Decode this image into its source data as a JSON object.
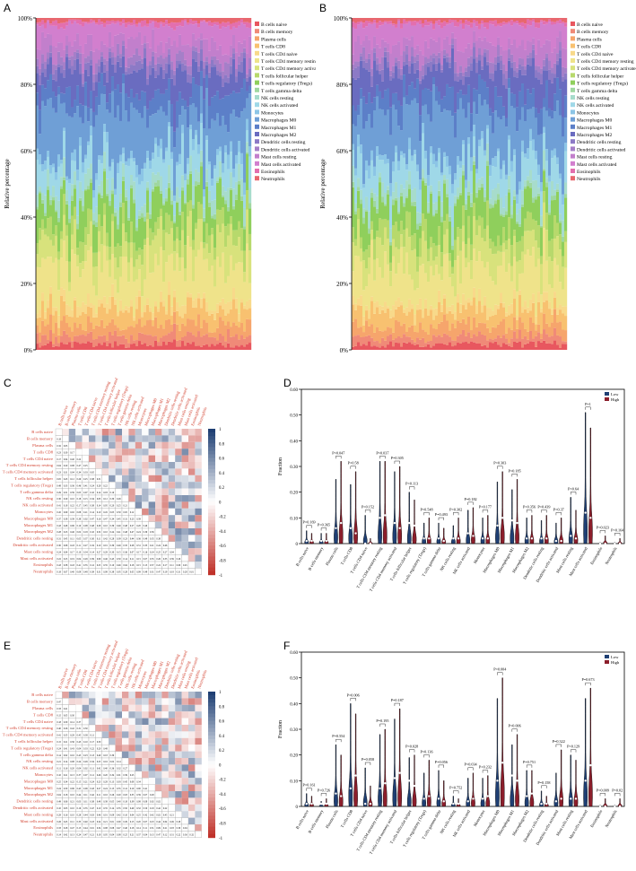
{
  "panel_labels": {
    "a": "A",
    "b": "B",
    "c": "C",
    "d": "D",
    "e": "E",
    "f": "F"
  },
  "cell_types": [
    "B cells naive",
    "B cells memory",
    "Plasma cells",
    "T cells CD8",
    "T cells CD4 naive",
    "T cells CD4 memory resting",
    "T cells CD4 memory activated",
    "T cells follicular helper",
    "T cells regulatory (Tregs)",
    "T cells gamma delta",
    "NK cells resting",
    "NK cells activated",
    "Monocytes",
    "Macrophages M0",
    "Macrophages M1",
    "Macrophages M2",
    "Dendritic cells resting",
    "Dendritic cells activated",
    "Mast cells resting",
    "Mast cells activated",
    "Eosinophils",
    "Neutrophils"
  ],
  "legend_colors": [
    "#e8575f",
    "#f08a78",
    "#f6a56c",
    "#f8c170",
    "#f8d98a",
    "#efe38a",
    "#d8e27c",
    "#b7d96c",
    "#8fcf5c",
    "#9fd7a0",
    "#a7dccc",
    "#9fd8e8",
    "#8cc5e6",
    "#6f9fd6",
    "#5c7fc8",
    "#6a6cc0",
    "#8c7ac6",
    "#a57fc8",
    "#c27fcc",
    "#d27fce",
    "#e36fae",
    "#e8676e"
  ],
  "stacked_panels": [
    {
      "id": "A",
      "ylabel": "Relative percentage",
      "yticks": [
        "0%",
        "20%",
        "40%",
        "60%",
        "80%",
        "100%"
      ],
      "n_samples": 80
    },
    {
      "id": "B",
      "ylabel": "Relative percentage",
      "yticks": [
        "0%",
        "20%",
        "40%",
        "60%",
        "80%",
        "100%"
      ],
      "n_samples": 80
    }
  ],
  "heatmap": {
    "colorbar_ticks": [
      "1",
      "0.8",
      "0.6",
      "0.4",
      "0.2",
      "0",
      "-0.2",
      "-0.4",
      "-0.6",
      "-0.8",
      "-1"
    ],
    "low_color": "#c0322a",
    "mid_color": "#ffffff",
    "high_color": "#1f3f73"
  },
  "chart_data": [
    {
      "type": "violin",
      "panel": "D",
      "ylabel": "Fraction",
      "ylim": [
        0,
        0.6
      ],
      "yticks": [
        "0",
        "0.10",
        "0.20",
        "0.30",
        "0.40",
        "0.50",
        "0.60"
      ],
      "legend": [
        "Low",
        "High"
      ],
      "colors": {
        "low": "#1f3f73",
        "high": "#8b1e2b"
      },
      "categories": [
        "B cells naive",
        "B cells memory",
        "Plasma cells",
        "T cells CD8",
        "T cells CD4 naive",
        "T cells CD4 memory resting",
        "T cells CD4 memory activated",
        "T cells follicular helper",
        "T cells regulatory (Tregs)",
        "T cells gamma delta",
        "NK cells resting",
        "NK cells activated",
        "Monocytes",
        "Macrophages M0",
        "Macrophages M1",
        "Macrophages M2",
        "Dendritic cells resting",
        "Dendritic cells activated",
        "Mast cells resting",
        "Mast cells activated",
        "Eosinophils",
        "Neutrophils"
      ],
      "pvalues": [
        "P=0.169",
        "P=0.365",
        "P=0.047",
        "P=0.58",
        "P=0.152",
        "P=0.037",
        "P=0.305",
        "P=0.113",
        "P=0.548",
        "P=0.493",
        "P=0.302",
        "P=0.182",
        "P=0.177",
        "P=0.303",
        "P=0.185",
        "P=0.356",
        "P=0.439",
        "P=0.37",
        "P=0.64",
        "P=1",
        "P=0.023",
        "P=0.164"
      ],
      "low_max": [
        0.05,
        0.04,
        0.25,
        0.23,
        0.11,
        0.32,
        0.28,
        0.2,
        0.08,
        0.08,
        0.07,
        0.13,
        0.1,
        0.24,
        0.21,
        0.1,
        0.09,
        0.08,
        0.18,
        0.51,
        0.005,
        0.005
      ],
      "high_max": [
        0.04,
        0.04,
        0.32,
        0.28,
        0.02,
        0.32,
        0.3,
        0.17,
        0.1,
        0.06,
        0.1,
        0.14,
        0.11,
        0.28,
        0.25,
        0.11,
        0.11,
        0.1,
        0.13,
        0.45,
        0.03,
        0.02
      ],
      "low_median": [
        0.01,
        0.01,
        0.06,
        0.06,
        0.0,
        0.1,
        0.08,
        0.08,
        0.02,
        0.02,
        0.02,
        0.04,
        0.02,
        0.07,
        0.09,
        0.02,
        0.02,
        0.01,
        0.03,
        0.12,
        0.0,
        0.0
      ],
      "high_median": [
        0.01,
        0.01,
        0.08,
        0.04,
        0.0,
        0.11,
        0.06,
        0.07,
        0.02,
        0.01,
        0.02,
        0.03,
        0.02,
        0.1,
        0.08,
        0.02,
        0.02,
        0.01,
        0.02,
        0.1,
        0.0,
        0.0
      ]
    },
    {
      "type": "violin",
      "panel": "F",
      "ylabel": "Fraction",
      "ylim": [
        0,
        0.6
      ],
      "yticks": [
        "0",
        "0.10",
        "0.20",
        "0.30",
        "0.40",
        "0.50",
        "0.60"
      ],
      "legend": [
        "Low",
        "High"
      ],
      "colors": {
        "low": "#1f3f73",
        "high": "#8b1e2b"
      },
      "categories": [
        "B cells naive",
        "B cells memory",
        "Plasma cells",
        "T cells CD8",
        "T cells CD4 naive",
        "T cells CD4 memory resting",
        "T cells CD4 memory activated",
        "T cells follicular helper",
        "T cells regulatory (Tregs)",
        "T cells gamma delta",
        "NK cells resting",
        "NK cells activated",
        "Monocytes",
        "Macrophages M0",
        "Macrophages M1",
        "Macrophages M2",
        "Dendritic cells resting",
        "Dendritic cells activated",
        "Mast cells resting",
        "Mast cells activated",
        "Eosinophils",
        "Neutrophils"
      ],
      "pvalues": [
        "P=0.161",
        "P=0.726",
        "P=0.554",
        "P=0.006",
        "P=0.058",
        "P=0.195",
        "P=0.187",
        "P=0.028",
        "P=0.136",
        "P=0.056",
        "P=0.752",
        "P=0.034",
        "P=0.232",
        "P=0.004",
        "P=0.006",
        "P=0.751",
        "P=0.158",
        "P=0.322",
        "P=0.129",
        "P=0.673",
        "P=0.009",
        "P=0.02"
      ],
      "low_max": [
        0.05,
        0.02,
        0.24,
        0.4,
        0.15,
        0.28,
        0.34,
        0.19,
        0.13,
        0.14,
        0.04,
        0.11,
        0.11,
        0.42,
        0.24,
        0.14,
        0.06,
        0.13,
        0.2,
        0.42,
        0.005,
        0.005
      ],
      "high_max": [
        0.04,
        0.03,
        0.2,
        0.36,
        0.08,
        0.3,
        0.38,
        0.2,
        0.18,
        0.1,
        0.03,
        0.13,
        0.12,
        0.5,
        0.28,
        0.14,
        0.04,
        0.22,
        0.18,
        0.46,
        0.03,
        0.03
      ],
      "low_median": [
        0.01,
        0.01,
        0.05,
        0.07,
        0.01,
        0.07,
        0.11,
        0.1,
        0.03,
        0.03,
        0.01,
        0.02,
        0.03,
        0.1,
        0.12,
        0.04,
        0.01,
        0.02,
        0.03,
        0.1,
        0.0,
        0.0
      ],
      "high_median": [
        0.01,
        0.01,
        0.04,
        0.12,
        0.01,
        0.09,
        0.13,
        0.08,
        0.04,
        0.02,
        0.01,
        0.03,
        0.04,
        0.17,
        0.1,
        0.05,
        0.01,
        0.03,
        0.03,
        0.16,
        0.0,
        0.0
      ]
    }
  ]
}
